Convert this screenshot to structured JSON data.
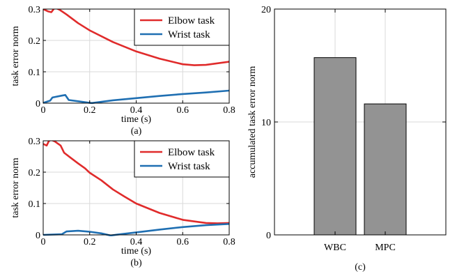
{
  "colors": {
    "elbow": "#e02b2b",
    "wrist": "#1f6fb2",
    "bar": "#939393"
  },
  "chart_data": [
    {
      "type": "line",
      "caption": "(a)",
      "xlabel": "time (s)",
      "ylabel": "task error norm",
      "xlim": [
        0,
        0.8
      ],
      "ylim": [
        0,
        0.3
      ],
      "xticks": [
        "0",
        "0.2",
        "0.4",
        "0.6",
        "0.8"
      ],
      "yticks": [
        "0",
        "0.1",
        "0.2",
        "0.3"
      ],
      "grid": true,
      "legend_position": "top-right",
      "series": [
        {
          "name": "Elbow task",
          "color": "#e02b2b",
          "points": [
            [
              0,
              0.3
            ],
            [
              0.02,
              0.293
            ],
            [
              0.035,
              0.29
            ],
            [
              0.05,
              0.305
            ],
            [
              0.07,
              0.298
            ],
            [
              0.1,
              0.283
            ],
            [
              0.15,
              0.255
            ],
            [
              0.2,
              0.232
            ],
            [
              0.3,
              0.195
            ],
            [
              0.4,
              0.165
            ],
            [
              0.5,
              0.142
            ],
            [
              0.6,
              0.124
            ],
            [
              0.65,
              0.121
            ],
            [
              0.7,
              0.122
            ],
            [
              0.8,
              0.132
            ]
          ]
        },
        {
          "name": "Wrist task",
          "color": "#1f6fb2",
          "points": [
            [
              0,
              0.001
            ],
            [
              0.03,
              0.008
            ],
            [
              0.04,
              0.018
            ],
            [
              0.08,
              0.024
            ],
            [
              0.095,
              0.026
            ],
            [
              0.11,
              0.01
            ],
            [
              0.15,
              0.006
            ],
            [
              0.2,
              0.001
            ],
            [
              0.21,
              0.0005
            ],
            [
              0.3,
              0.009
            ],
            [
              0.4,
              0.016
            ],
            [
              0.5,
              0.023
            ],
            [
              0.6,
              0.029
            ],
            [
              0.7,
              0.034
            ],
            [
              0.8,
              0.04
            ]
          ]
        }
      ]
    },
    {
      "type": "line",
      "caption": "(b)",
      "xlabel": "time (s)",
      "ylabel": "task error norm",
      "xlim": [
        0,
        0.8
      ],
      "ylim": [
        0,
        0.3
      ],
      "xticks": [
        "0",
        "0.2",
        "0.4",
        "0.6",
        "0.8"
      ],
      "yticks": [
        "0",
        "0.1",
        "0.2",
        "0.3"
      ],
      "grid": true,
      "legend_position": "top-right",
      "series": [
        {
          "name": "Elbow task",
          "color": "#e02b2b",
          "points": [
            [
              0,
              0.29
            ],
            [
              0.015,
              0.285
            ],
            [
              0.025,
              0.3
            ],
            [
              0.035,
              0.303
            ],
            [
              0.05,
              0.298
            ],
            [
              0.075,
              0.285
            ],
            [
              0.09,
              0.262
            ],
            [
              0.12,
              0.245
            ],
            [
              0.15,
              0.228
            ],
            [
              0.18,
              0.212
            ],
            [
              0.2,
              0.198
            ],
            [
              0.25,
              0.174
            ],
            [
              0.3,
              0.145
            ],
            [
              0.35,
              0.122
            ],
            [
              0.4,
              0.1
            ],
            [
              0.5,
              0.07
            ],
            [
              0.6,
              0.048
            ],
            [
              0.7,
              0.038
            ],
            [
              0.75,
              0.037
            ],
            [
              0.8,
              0.038
            ]
          ]
        },
        {
          "name": "Wrist task",
          "color": "#1f6fb2",
          "points": [
            [
              0,
              0.0
            ],
            [
              0.08,
              0.002
            ],
            [
              0.1,
              0.011
            ],
            [
              0.15,
              0.013
            ],
            [
              0.2,
              0.01
            ],
            [
              0.25,
              0.005
            ],
            [
              0.29,
              -0.002
            ],
            [
              0.32,
              0.001
            ],
            [
              0.4,
              0.008
            ],
            [
              0.5,
              0.017
            ],
            [
              0.6,
              0.025
            ],
            [
              0.7,
              0.031
            ],
            [
              0.8,
              0.035
            ]
          ]
        }
      ]
    },
    {
      "type": "bar",
      "caption": "(c)",
      "categories": [
        "WBC",
        "MPC"
      ],
      "values": [
        15.7,
        11.6
      ],
      "ylabel": "accumulated task error norm",
      "ylim": [
        0,
        20
      ],
      "yticks": [
        "0",
        "10",
        "20"
      ],
      "grid": true,
      "color": "#939393"
    }
  ]
}
